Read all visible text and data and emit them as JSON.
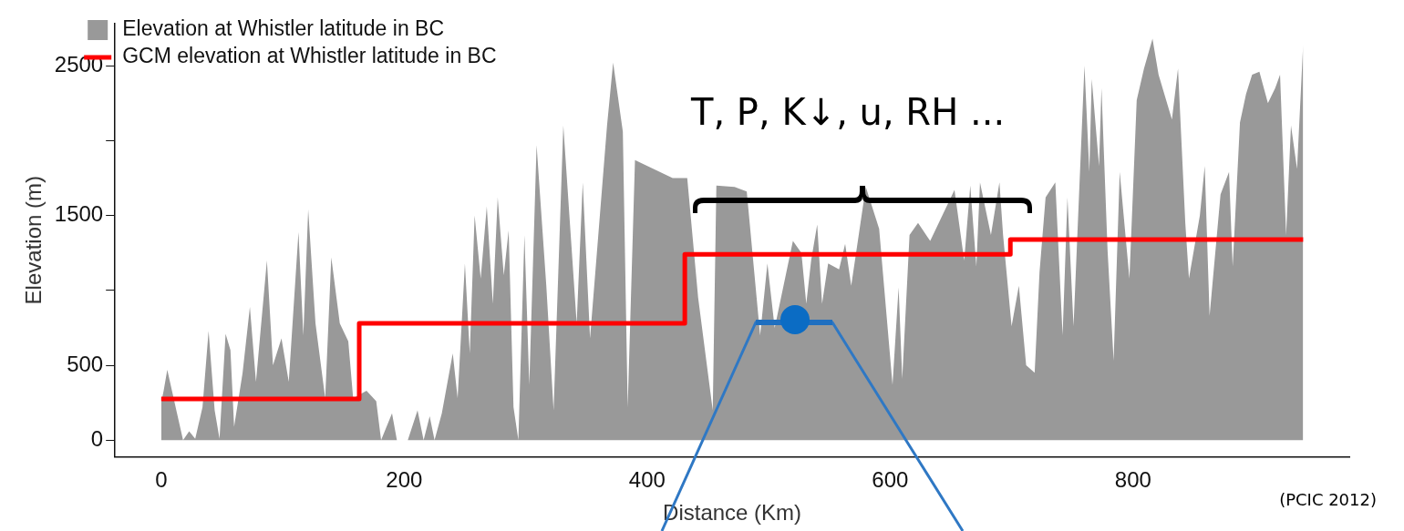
{
  "chart_data": {
    "type": "area",
    "xlabel": "Distance (Km)",
    "ylabel": "Elevation (m)",
    "xlim": [
      -38,
      978
    ],
    "ylim": [
      -110,
      2780
    ],
    "xticks": [
      0,
      200,
      400,
      600,
      800
    ],
    "yticks": [
      0,
      500,
      {
        "value": 1000,
        "label": null
      },
      1500,
      {
        "value": 2000,
        "label": null
      },
      2500
    ],
    "grid": false,
    "legend": "top left",
    "marker": "none",
    "annotations": [
      "T, P, K↓, u, RH ...",
      "(PCIC 2012)"
    ],
    "series": [
      {
        "name": "Elevation at Whistler latitude in BC",
        "color": "#999999",
        "x": [
          0,
          2,
          5,
          13,
          18,
          23,
          28,
          34,
          39,
          44,
          48,
          53,
          57,
          60,
          67,
          73,
          78,
          87,
          92,
          99,
          105,
          113,
          117,
          121,
          127,
          135,
          140,
          147,
          154,
          158,
          169,
          177,
          181,
          190,
          194,
          203,
          211,
          216,
          221,
          225,
          231,
          240,
          244,
          250,
          254,
          258,
          263,
          268,
          273,
          277,
          282,
          286,
          290,
          294,
          299,
          303,
          309,
          317,
          323,
          331,
          342,
          347,
          353,
          367,
          372,
          380,
          384,
          390,
          421,
          433,
          442,
          454,
          457,
          472,
          482,
          493,
          499,
          505,
          520,
          527,
          531,
          535,
          540,
          544,
          549,
          558,
          563,
          568,
          580,
          591,
          595,
          602,
          607,
          610,
          616,
          623,
          633,
          643,
          653,
          661,
          666,
          671,
          674,
          683,
          690,
          693,
          700,
          706,
          712,
          719,
          723,
          728,
          736,
          742,
          746,
          751,
          760,
          764,
          766,
          772,
          774,
          779,
          784,
          789,
          797,
          803,
          809,
          816,
          821,
          832,
          837,
          843,
          846,
          855,
          859,
          863,
          872,
          879,
          882,
          888,
          893,
          898,
          904,
          911,
          917,
          921,
          926,
          930,
          935,
          940
        ],
        "values": [
          250,
          330,
          470,
          180,
          0,
          60,
          10,
          220,
          730,
          200,
          10,
          710,
          600,
          90,
          450,
          890,
          390,
          1200,
          500,
          680,
          390,
          1390,
          700,
          1540,
          780,
          280,
          1220,
          780,
          660,
          280,
          330,
          260,
          0,
          180,
          0,
          0,
          200,
          0,
          160,
          0,
          180,
          580,
          280,
          1180,
          580,
          1500,
          1080,
          1560,
          910,
          1620,
          1100,
          1400,
          220,
          0,
          1370,
          370,
          1970,
          1030,
          200,
          2100,
          780,
          1720,
          680,
          2100,
          2520,
          2060,
          220,
          1870,
          1750,
          1750,
          950,
          200,
          1700,
          1690,
          1660,
          700,
          1180,
          750,
          1330,
          1250,
          910,
          1200,
          1440,
          910,
          1180,
          1140,
          1310,
          1030,
          1690,
          1410,
          1030,
          370,
          1020,
          410,
          1370,
          1450,
          1330,
          1500,
          1670,
          1200,
          1700,
          1160,
          1720,
          1370,
          1720,
          1370,
          760,
          1030,
          500,
          450,
          1120,
          1620,
          1720,
          700,
          1620,
          760,
          2500,
          1790,
          2410,
          1830,
          2350,
          1270,
          530,
          1790,
          1080,
          2270,
          2480,
          2680,
          2440,
          2140,
          2480,
          1450,
          1080,
          1500,
          1830,
          830,
          1640,
          1790,
          1160,
          2120,
          2310,
          2440,
          2460,
          2250,
          2350,
          2440,
          1370,
          2100,
          1810,
          2640
        ]
      },
      {
        "name": "GCM elevation at Whistler latitude in BC",
        "type": "step",
        "color": "#ff0000",
        "x": [
          0,
          163,
          431,
          699,
          940
        ],
        "values": [
          275,
          780,
          1240,
          1340,
          1340
        ]
      }
    ]
  }
}
